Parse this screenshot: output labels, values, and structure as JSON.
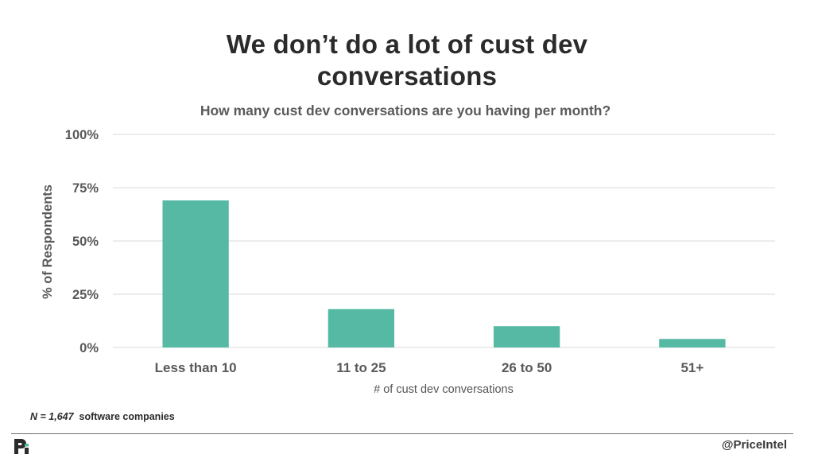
{
  "slide": {
    "title_line1": "We don’t do a lot of cust dev",
    "title_line2": "conversations",
    "footnote_n": "N = 1,647",
    "footnote_text": "software companies",
    "handle": "@PriceIntel",
    "logo_icon": "priceintel-logo-icon",
    "accent_color": "#55b9a3"
  },
  "chart_data": {
    "type": "bar",
    "title": "How many cust dev conversations are you having per month?",
    "xlabel": "# of cust dev conversations",
    "ylabel": "% of Respondents",
    "categories": [
      "Less than 10",
      "11 to 25",
      "26 to 50",
      "51+"
    ],
    "values": [
      69,
      18,
      10,
      4
    ],
    "value_unit": "%",
    "ylim": [
      0,
      100
    ],
    "yticks": [
      0,
      25,
      50,
      75,
      100
    ],
    "ytick_labels": [
      "0%",
      "25%",
      "50%",
      "75%",
      "100%"
    ],
    "grid": true,
    "legend": "none",
    "bar_color": "#55b9a3"
  }
}
